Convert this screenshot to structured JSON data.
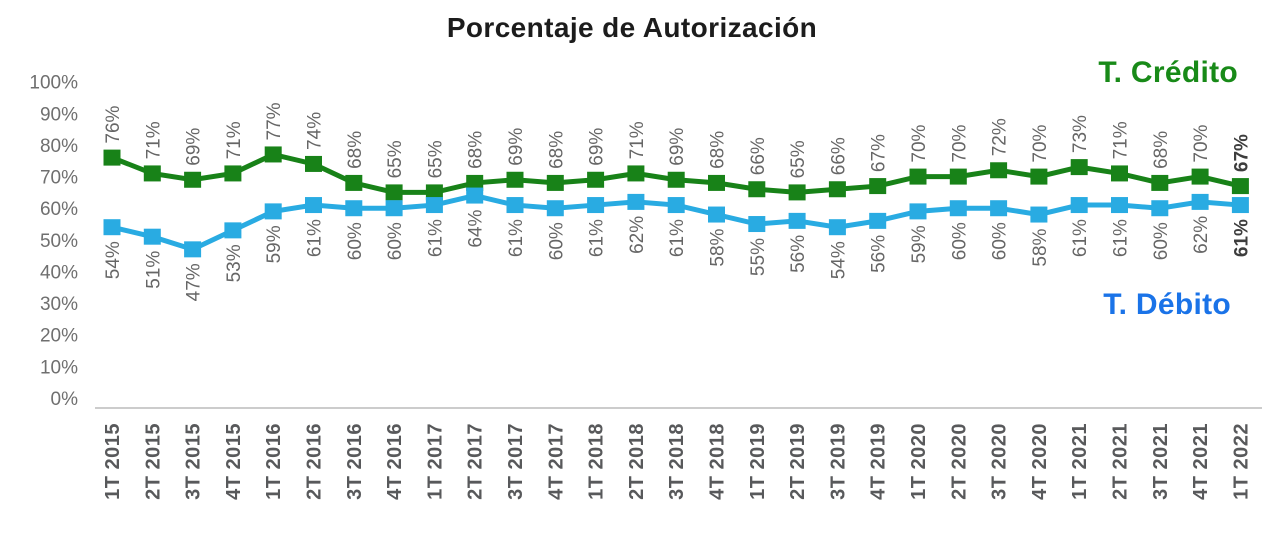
{
  "chart_data": {
    "type": "line",
    "title": "Porcentaje de Autorización",
    "categories": [
      "1T 2015",
      "2T 2015",
      "3T 2015",
      "4T 2015",
      "1T 2016",
      "2T 2016",
      "3T 2016",
      "4T 2016",
      "1T 2017",
      "2T 2017",
      "3T 2017",
      "4T 2017",
      "1T 2018",
      "2T 2018",
      "3T 2018",
      "4T 2018",
      "1T 2019",
      "2T 2019",
      "3T 2019",
      "4T 2019",
      "1T 2020",
      "2T 2020",
      "3T 2020",
      "4T 2020",
      "1T 2021",
      "2T 2021",
      "3T 2021",
      "4T 2021",
      "1T 2022"
    ],
    "series": [
      {
        "name": "T. Crédito",
        "color": "#188218",
        "marker": "square",
        "values": [
          76,
          71,
          69,
          71,
          77,
          74,
          68,
          65,
          65,
          68,
          69,
          68,
          69,
          71,
          69,
          68,
          66,
          65,
          66,
          67,
          70,
          70,
          72,
          70,
          73,
          71,
          68,
          70,
          67
        ]
      },
      {
        "name": "T. Débito",
        "color": "#29abe2",
        "marker": "square",
        "values": [
          54,
          51,
          47,
          53,
          59,
          61,
          60,
          60,
          61,
          64,
          61,
          60,
          61,
          62,
          61,
          58,
          55,
          56,
          54,
          56,
          59,
          60,
          60,
          58,
          61,
          61,
          60,
          62,
          61
        ]
      }
    ],
    "legend": [
      {
        "label": "T. Crédito",
        "color": "#188a18",
        "position": "top-right"
      },
      {
        "label": "T. Débito",
        "color": "#1a73e8",
        "position": "bottom-right"
      }
    ],
    "y_ticks": [
      "100%",
      "90%",
      "80%",
      "70%",
      "60%",
      "50%",
      "40%",
      "30%",
      "20%",
      "10%",
      "0%"
    ],
    "ylim": [
      0,
      100
    ],
    "grid": false,
    "data_labels": "percent, rotated 90°, last point bold",
    "axis_line_color": "#cccccc",
    "last_point_bold": true
  }
}
